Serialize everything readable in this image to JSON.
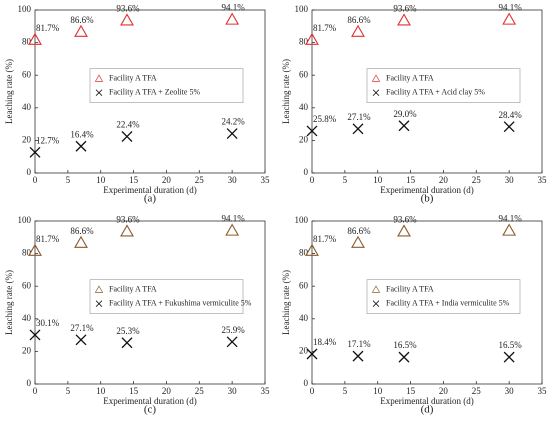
{
  "chart_data": [
    {
      "type": "scatter",
      "caption": "(a)",
      "xlabel": "Experimental duration (d)",
      "ylabel": "Leaching rate (%)",
      "x": [
        0,
        7,
        14,
        30
      ],
      "xlim": [
        0,
        35
      ],
      "ylim": [
        0,
        100
      ],
      "xticks": [
        0,
        5,
        10,
        15,
        20,
        25,
        30,
        35
      ],
      "yticks": [
        0,
        20,
        40,
        60,
        80,
        100
      ],
      "grid": false,
      "legend": "center",
      "series": [
        {
          "name": "Facility A  TFA",
          "marker": "triangle",
          "color": "#e03030",
          "values": [
            81.7,
            86.6,
            93.6,
            94.1
          ],
          "value_labels": [
            "81.7%",
            "86.6%",
            "93.6%",
            "94.1%"
          ]
        },
        {
          "name": "Facility A  TFA + Zeolite 5%",
          "marker": "x",
          "color": "#111111",
          "values": [
            12.7,
            16.4,
            22.4,
            24.2
          ],
          "value_labels": [
            "12.7%",
            "16.4%",
            "22.4%",
            "24.2%"
          ]
        }
      ]
    },
    {
      "type": "scatter",
      "caption": "(b)",
      "xlabel": "Experimental duration (d)",
      "ylabel": "Leaching rate (%)",
      "x": [
        0,
        7,
        14,
        30
      ],
      "xlim": [
        0,
        35
      ],
      "ylim": [
        0,
        100
      ],
      "xticks": [
        0,
        5,
        10,
        15,
        20,
        25,
        30,
        35
      ],
      "yticks": [
        0,
        20,
        40,
        60,
        80,
        100
      ],
      "grid": false,
      "legend": "center",
      "series": [
        {
          "name": "Facility A  TFA",
          "marker": "triangle",
          "color": "#e03030",
          "values": [
            81.7,
            86.6,
            93.6,
            94.1
          ],
          "value_labels": [
            "81.7%",
            "86.6%",
            "93.6%",
            "94.1%"
          ]
        },
        {
          "name": "Facility A  TFA + Acid clay 5%",
          "marker": "x",
          "color": "#111111",
          "values": [
            25.8,
            27.1,
            29.0,
            28.4
          ],
          "value_labels": [
            "25.8%",
            "27.1%",
            "29.0%",
            "28.4%"
          ]
        }
      ]
    },
    {
      "type": "scatter",
      "caption": "(c)",
      "xlabel": "Experimental duration (d)",
      "ylabel": "Leaching rate (%)",
      "x": [
        0,
        7,
        14,
        30
      ],
      "xlim": [
        0,
        35
      ],
      "ylim": [
        0,
        100
      ],
      "xticks": [
        0,
        5,
        10,
        15,
        20,
        25,
        30,
        35
      ],
      "yticks": [
        0,
        20,
        40,
        60,
        80,
        100
      ],
      "grid": false,
      "legend": "center",
      "series": [
        {
          "name": "Facility A  TFA",
          "marker": "triangle",
          "color": "#8b5a2b",
          "values": [
            81.7,
            86.6,
            93.6,
            94.1
          ],
          "value_labels": [
            "81.7%",
            "86.6%",
            "93.6%",
            "94.1%"
          ]
        },
        {
          "name": "Facility A  TFA + Fukushima vermiculite 5%",
          "marker": "x",
          "color": "#111111",
          "values": [
            30.1,
            27.1,
            25.3,
            25.9
          ],
          "value_labels": [
            "30.1%",
            "27.1%",
            "25.3%",
            "25.9%"
          ]
        }
      ]
    },
    {
      "type": "scatter",
      "caption": "(d)",
      "xlabel": "Experimental duration (d)",
      "ylabel": "Leaching rate (%)",
      "x": [
        0,
        7,
        14,
        30
      ],
      "xlim": [
        0,
        35
      ],
      "ylim": [
        0,
        100
      ],
      "xticks": [
        0,
        5,
        10,
        15,
        20,
        25,
        30,
        35
      ],
      "yticks": [
        0,
        20,
        40,
        60,
        80,
        100
      ],
      "grid": false,
      "legend": "center",
      "series": [
        {
          "name": "Facility A  TFA",
          "marker": "triangle",
          "color": "#8b5a2b",
          "values": [
            81.7,
            86.6,
            93.6,
            94.1
          ],
          "value_labels": [
            "81.7%",
            "86.6%",
            "93.6%",
            "94.1%"
          ]
        },
        {
          "name": "Facility A  TFA + India vermiculite 5%",
          "marker": "x",
          "color": "#111111",
          "values": [
            18.4,
            17.1,
            16.5,
            16.5
          ],
          "value_labels": [
            "18.4%",
            "17.1%",
            "16.5%",
            "16.5%"
          ]
        }
      ]
    }
  ]
}
